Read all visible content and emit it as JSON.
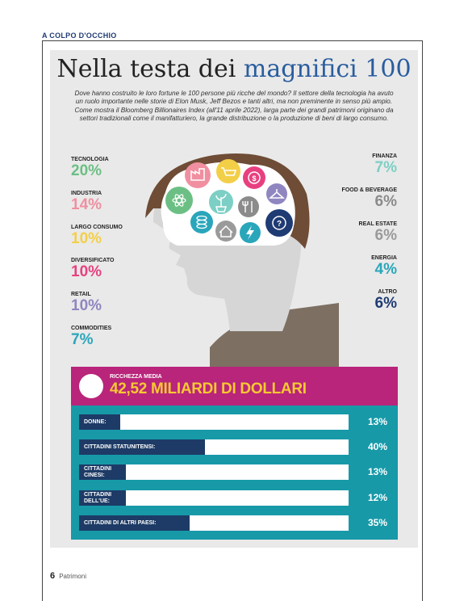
{
  "rubric": "A COLPO D'OCCHIO",
  "title": {
    "prefix": "Nella testa dei",
    "accent": "magnifici 100"
  },
  "lede": "Dove hanno costruito le loro fortune le 100 persone più ricche del mondo? Il settore della tecnologia ha avuto un ruolo importante nelle storie di Elon Musk, Jeff Bezos e tanti altri, ma non preminente in senso più ampio. Come mostra il Bloomberg Billionaires Index (all'11 aprile 2022), larga parte dei grandi patrimoni originano da settori tradizionali come il manifatturiero, la grande distribuzione o la produzione di beni di largo consumo.",
  "colors": {
    "tecnologia": "#6cbf84",
    "industria": "#f08fa0",
    "largo_consumo": "#f3cf48",
    "diversificato": "#e8407f",
    "retail": "#8f86c0",
    "commodities": "#2aa6bb",
    "finanza": "#7ccfc4",
    "food": "#8b8b8b",
    "real_estate": "#9a9a9a",
    "energia": "#2aa6bb",
    "altro": "#1f3b73",
    "banner": "#b8257a",
    "stats_bg": "#1799a8",
    "bar_fill": "#1d3b66",
    "headline_yellow": "#f7c832"
  },
  "sectors_left": [
    {
      "label": "TECNOLOGIA",
      "value": "20%"
    },
    {
      "label": "INDUSTRIA",
      "value": "14%"
    },
    {
      "label": "LARGO CONSUMO",
      "value": "10%"
    },
    {
      "label": "DIVERSIFICATO",
      "value": "10%"
    },
    {
      "label": "RETAIL",
      "value": "10%"
    },
    {
      "label": "COMMODITIES",
      "value": "7%"
    }
  ],
  "sectors_right": [
    {
      "label": "FINANZA",
      "value": "7%"
    },
    {
      "label": "FOOD & BEVERAGE",
      "value": "6%"
    },
    {
      "label": "REAL ESTATE",
      "value": "6%"
    },
    {
      "label": "ENERGIA",
      "value": "4%"
    },
    {
      "label": "ALTRO",
      "value": "6%"
    }
  ],
  "brain_icons": [
    "factory-icon",
    "cart-icon",
    "money-icon",
    "hanger-icon",
    "atom-icon",
    "plant-icon",
    "cutlery-icon",
    "coins-icon",
    "house-icon",
    "lightning-icon",
    "question-icon"
  ],
  "wealth": {
    "caption": "RICCHEZZA MEDIA",
    "headline": "42,52 MILIARDI DI DOLLARI"
  },
  "stats": [
    {
      "label": "DONNE:",
      "pct": "13%",
      "share": 0.13
    },
    {
      "label": "CITTADINI STATUNITENSI:",
      "pct": "40%",
      "share": 0.4
    },
    {
      "label": "CITTADINI CINESI:",
      "pct": "13%",
      "share": 0.13
    },
    {
      "label": "CITTADINI DELL'UE:",
      "pct": "12%",
      "share": 0.12
    },
    {
      "label": "CITTADINI DI ALTRI PAESI:",
      "pct": "35%",
      "share": 0.35
    }
  ],
  "folio": {
    "page": "6",
    "magazine": "Patrimoni"
  }
}
